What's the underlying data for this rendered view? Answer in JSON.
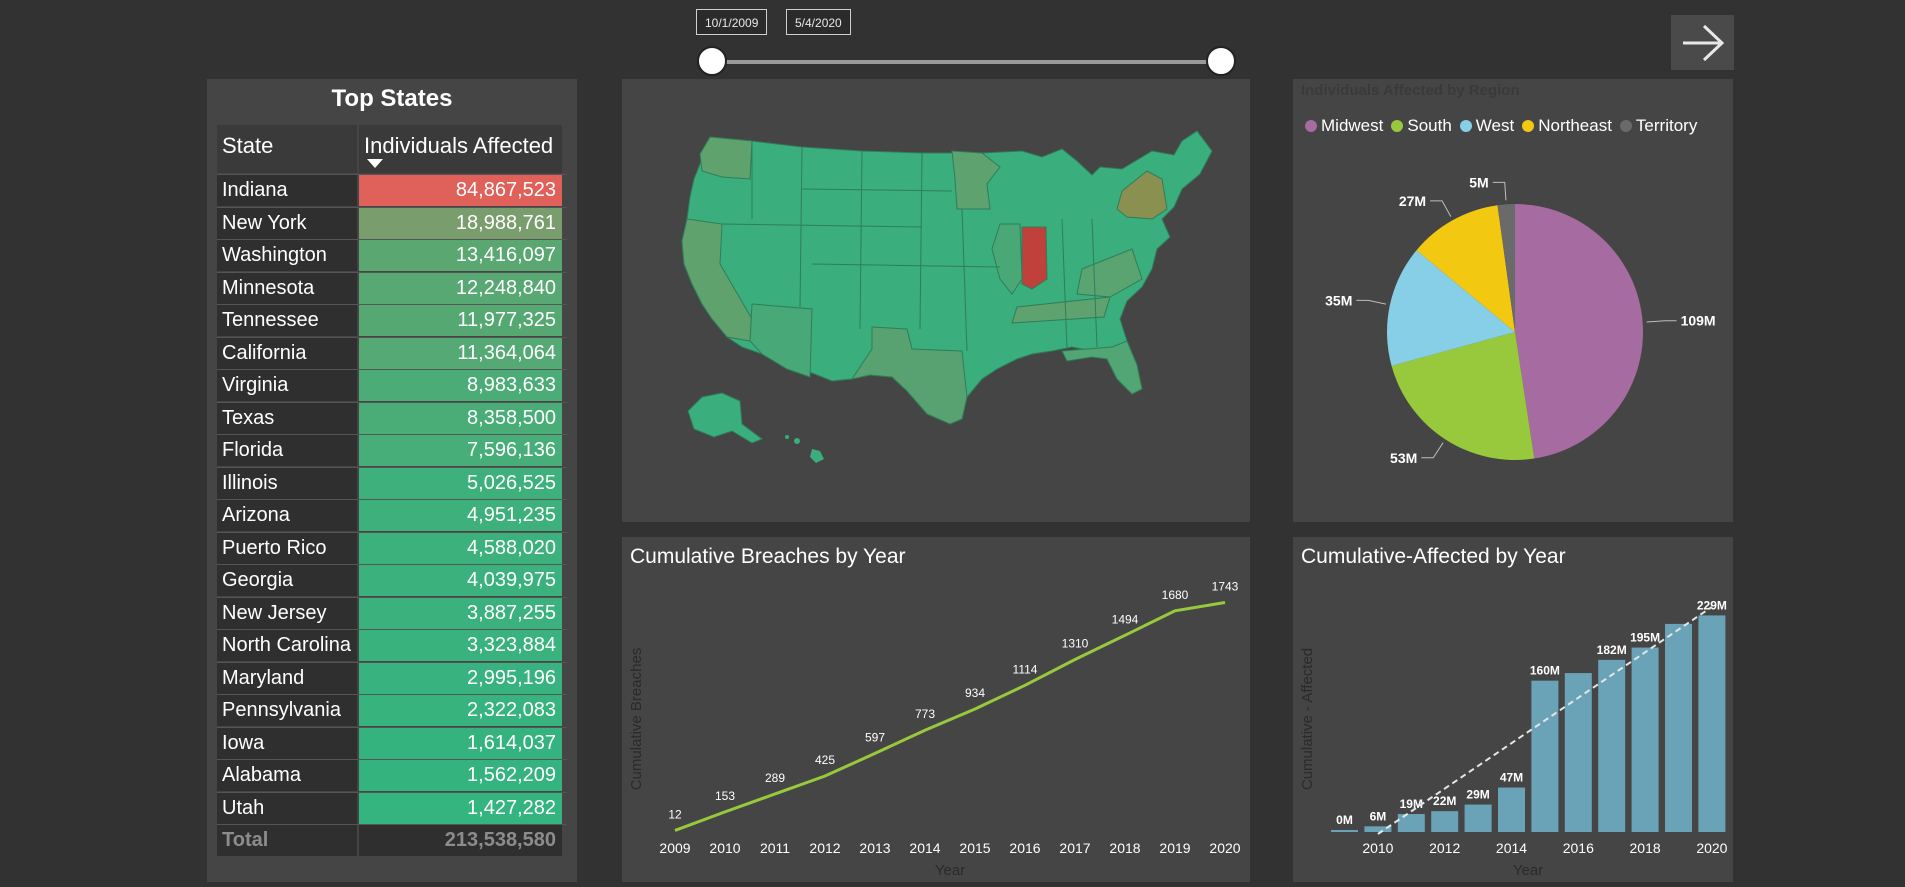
{
  "filters": {
    "start_date": "10/1/2009",
    "end_date": "5/4/2020"
  },
  "nav": {
    "icon": "arrow-right-icon"
  },
  "table": {
    "title": "Top States",
    "col_state": "State",
    "col_value": "Individuals Affected",
    "rows": [
      {
        "state": "Indiana",
        "value": "84,867,523",
        "color": "#e0605a"
      },
      {
        "state": "New York",
        "value": "18,988,761",
        "color": "#7a9d6d"
      },
      {
        "state": "Washington",
        "value": "13,416,097",
        "color": "#5aa772"
      },
      {
        "state": "Minnesota",
        "value": "12,248,840",
        "color": "#57a873"
      },
      {
        "state": "Tennessee",
        "value": "11,977,325",
        "color": "#56a873"
      },
      {
        "state": "California",
        "value": "11,364,064",
        "color": "#55a974"
      },
      {
        "state": "Virginia",
        "value": "8,983,633",
        "color": "#4cac77"
      },
      {
        "state": "Texas",
        "value": "8,358,500",
        "color": "#4aad78"
      },
      {
        "state": "Florida",
        "value": "7,596,136",
        "color": "#47ae79"
      },
      {
        "state": "Illinois",
        "value": "5,026,525",
        "color": "#3eb07c"
      },
      {
        "state": "Arizona",
        "value": "4,951,235",
        "color": "#3eb07c"
      },
      {
        "state": "Puerto Rico",
        "value": "4,588,020",
        "color": "#3db17c"
      },
      {
        "state": "Georgia",
        "value": "4,039,975",
        "color": "#3bb17d"
      },
      {
        "state": "New Jersey",
        "value": "3,887,255",
        "color": "#3bb17d"
      },
      {
        "state": "North Carolina",
        "value": "3,323,884",
        "color": "#39b27e"
      },
      {
        "state": "Maryland",
        "value": "2,995,196",
        "color": "#38b27e"
      },
      {
        "state": "Pennsylvania",
        "value": "2,322,083",
        "color": "#37b37e"
      },
      {
        "state": "Iowa",
        "value": "1,614,037",
        "color": "#35b37f"
      },
      {
        "state": "Alabama",
        "value": "1,562,209",
        "color": "#35b37f"
      },
      {
        "state": "Utah",
        "value": "1,427,282",
        "color": "#34b47f"
      }
    ],
    "total_label": "Total",
    "total_value": "213,538,580"
  },
  "map": {
    "base_color": "#3aae7c",
    "highlight_color": "#c0403c",
    "mid_color": "#6aa070",
    "ny_color": "#8a9050"
  },
  "pie": {
    "title": "Individuals Affected by Region",
    "legend": [
      {
        "name": "Midwest",
        "color": "#a66ba0"
      },
      {
        "name": "South",
        "color": "#98c93c"
      },
      {
        "name": "West",
        "color": "#86cfe6"
      },
      {
        "name": "Northeast",
        "color": "#f2c811"
      },
      {
        "name": "Territory",
        "color": "#6a6a6a"
      }
    ]
  },
  "chart_data": [
    {
      "type": "pie",
      "title": "Individuals Affected by Region",
      "categories": [
        "Midwest",
        "South",
        "West",
        "Northeast",
        "Territory"
      ],
      "values": [
        109,
        53,
        35,
        27,
        5
      ],
      "labels": [
        "109M",
        "53M",
        "35M",
        "27M",
        "5M"
      ],
      "unit": "M"
    },
    {
      "type": "line",
      "title": "Cumulative Breaches by Year",
      "xlabel": "Year",
      "ylabel": "Cumulative Breaches",
      "x": [
        "2009",
        "2010",
        "2011",
        "2012",
        "2013",
        "2014",
        "2015",
        "2016",
        "2017",
        "2018",
        "2019",
        "2020"
      ],
      "values": [
        12,
        153,
        289,
        425,
        597,
        773,
        934,
        1114,
        1310,
        1494,
        1680,
        1743
      ],
      "labels": [
        "12",
        "153",
        "289",
        "425",
        "597",
        "773",
        "934",
        "1114",
        "1310",
        "1494",
        "1680",
        "1743"
      ],
      "ylim": [
        0,
        1800
      ],
      "color": "#98c93c"
    },
    {
      "type": "bar",
      "title": "Cumulative-Affected by Year",
      "xlabel": "Year",
      "ylabel": "Cumulative - Affected",
      "categories": [
        "2009",
        "2010",
        "2011",
        "2012",
        "2013",
        "2014",
        "2015",
        "2016",
        "2017",
        "2018",
        "2019",
        "2020"
      ],
      "values": [
        0,
        6,
        19,
        22,
        29,
        47,
        160,
        168,
        182,
        195,
        220,
        229
      ],
      "labels": [
        "0M",
        "6M",
        "19M",
        "22M",
        "29M",
        "47M",
        "160M",
        "",
        "182M",
        "195M",
        "",
        "229M"
      ],
      "tick_labels": [
        "2010",
        "2012",
        "2014",
        "2016",
        "2018",
        "2020"
      ],
      "ylim": [
        0,
        240
      ],
      "trendline": true,
      "color": "#6aa3b8"
    }
  ]
}
